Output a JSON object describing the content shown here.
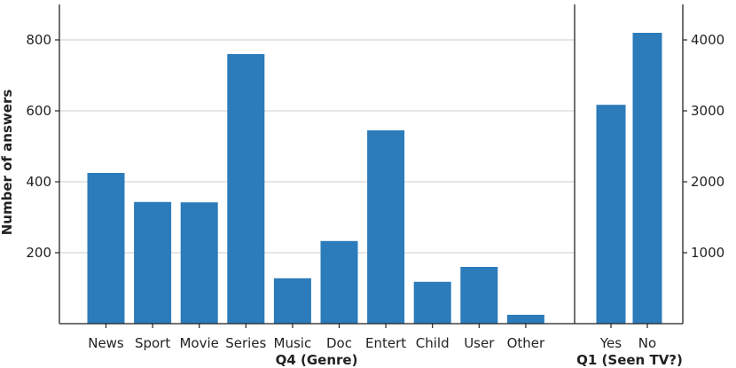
{
  "chart_data": [
    {
      "type": "bar",
      "xlabel": "Q4 (Genre)",
      "ylabel": "Number of answers",
      "categories": [
        "News",
        "Sport",
        "Movie",
        "Series",
        "Music",
        "Doc",
        "Entert",
        "Child",
        "User",
        "Other"
      ],
      "values": [
        425,
        343,
        342,
        760,
        128,
        233,
        545,
        118,
        160,
        25
      ],
      "ylim": [
        0,
        900
      ],
      "yticks": [
        200,
        400,
        600,
        800
      ],
      "grid": true,
      "color": "#2c7bba"
    },
    {
      "type": "bar",
      "xlabel": "Q1 (Seen TV?)",
      "categories": [
        "Yes",
        "No"
      ],
      "values": [
        3085,
        4100
      ],
      "ylim": [
        0,
        4500
      ],
      "yticks": [
        1000,
        2000,
        3000,
        4000
      ],
      "y_axis_side": "right",
      "color": "#2c7bba"
    }
  ]
}
